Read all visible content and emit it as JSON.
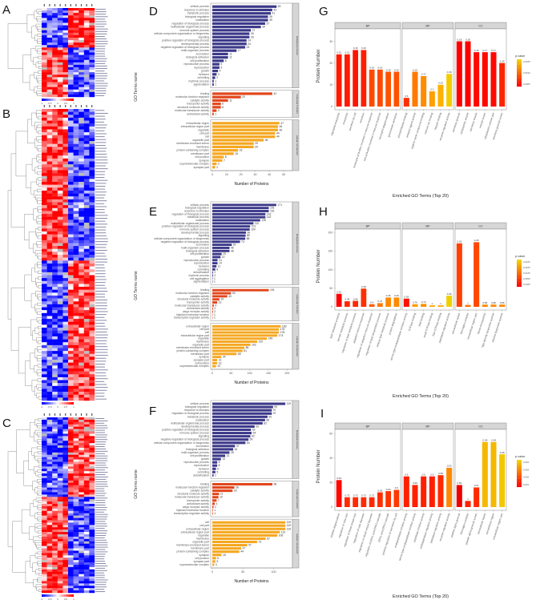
{
  "panel_letters": [
    "A",
    "B",
    "C",
    "D",
    "E",
    "F",
    "G",
    "H",
    "I"
  ],
  "heatmaps": [
    {
      "panel": "A",
      "colorbar_ticks": [
        "-1",
        "-0.5",
        "0",
        "0.5",
        "1"
      ]
    },
    {
      "panel": "B",
      "colorbar_ticks": [
        "-1",
        "-0.5",
        "0",
        "0.5",
        "1"
      ]
    },
    {
      "panel": "C",
      "colorbar_ticks": [
        "-1",
        "-0.5",
        "0",
        "0.5",
        "1"
      ]
    }
  ],
  "colors": {
    "BP": "#3d3a8a",
    "MF": "#e2471c",
    "CC": "#f5a822",
    "low_p": "#ff0000",
    "high_p": "#f2d200",
    "heat_low": "#0000ff",
    "heat_mid": "#ffffff",
    "heat_high": "#ff0000",
    "na": "#bdbdbd",
    "strip": "#d6d6d6"
  },
  "chart_data": [
    {
      "panel": "D",
      "type": "bar",
      "orientation": "horizontal",
      "ylabel": "GO Terms name",
      "xlabel": "Number of Proteins",
      "xlim": [
        0,
        55
      ],
      "xticks": [
        0,
        10,
        20,
        30,
        40,
        50
      ],
      "groups": [
        {
          "name": "biological process",
          "color": "#3d3a8a",
          "terms": [
            "cellular process",
            "response to stimulus",
            "metabolic process",
            "biological regulation",
            "localization",
            "regulation of biological process",
            "multicellular organismal process",
            "immune system process",
            "cellular component organization or biogenesis",
            "signaling",
            "positive regulation of biological process",
            "developmental process",
            "negative regulation of biological process",
            "multi-organism process",
            "locomotion",
            "biological adhesion",
            "cell proliferation",
            "reproductive process",
            "reproduction",
            "growth",
            "behavior",
            "cell killing",
            "rhythmic process",
            "pigmentation"
          ],
          "values": [
            45,
            42,
            41,
            39,
            39,
            37,
            34,
            27,
            26,
            26,
            24,
            24,
            23,
            17,
            11,
            11,
            8,
            5,
            5,
            4,
            3,
            2,
            1,
            1
          ]
        },
        {
          "name": "molecular function",
          "color": "#e2471c",
          "terms": [
            "binding",
            "molecular function regulator",
            "catalytic activity",
            "transporter activity",
            "structural molecule activity",
            "molecular transducer activity",
            "antioxidant activity"
          ],
          "values": [
            42,
            20,
            11,
            6,
            6,
            3,
            1
          ]
        },
        {
          "name": "cellular component",
          "color": "#f5a822",
          "terms": [
            "extracellular region",
            "extracellular region part",
            "organelle",
            "cell part",
            "cell",
            "organelle part",
            "membrane-enclosed lumen",
            "membrane",
            "protein-containing complex",
            "membrane part",
            "cell junction",
            "synapse",
            "supramolecular complex",
            "synapse part"
          ],
          "values": [
            47,
            46,
            46,
            44,
            44,
            36,
            29,
            29,
            18,
            15,
            8,
            7,
            3,
            2
          ]
        }
      ]
    },
    {
      "panel": "E",
      "type": "bar",
      "orientation": "horizontal",
      "ylabel": "GO Terms name",
      "xlabel": "Number of Proteins",
      "xlim": [
        0,
        210
      ],
      "xticks": [
        0,
        50,
        100,
        150,
        200
      ],
      "groups": [
        {
          "name": "biological process",
          "color": "#3d3a8a",
          "terms": [
            "cellular process",
            "biological regulation",
            "response to stimulus",
            "regulation of biological process",
            "metabolic process",
            "localization",
            "multicellular organismal process",
            "positive regulation of biological process",
            "immune system process",
            "developmental process",
            "signaling",
            "cellular component organization or biogenesis",
            "negative regulation of biological process",
            "locomotion",
            "multi-organism process",
            "biological adhesion",
            "cell proliferation",
            "growth",
            "reproductive process",
            "reproduction",
            "behavior",
            "cell killing",
            "detoxification",
            "rhythmic process",
            "cell aggregation",
            "pigmentation"
          ],
          "values": [
            171,
            151,
            151,
            142,
            142,
            128,
            110,
            101,
            100,
            90,
            89,
            88,
            74,
            52,
            46,
            46,
            25,
            22,
            14,
            14,
            11,
            8,
            2,
            2,
            1,
            1
          ]
        },
        {
          "name": "molecular function",
          "color": "#e2471c",
          "terms": [
            "binding",
            "molecular function regulator",
            "catalytic activity",
            "structural molecule activity",
            "transporter activity",
            "molecular transducer activity",
            "antioxidant activity",
            "cargo receptor activity",
            "hijacked molecular function",
            "transcription regulator activity"
          ],
          "values": [
            151,
            50,
            40,
            19,
            13,
            4,
            2,
            2,
            1,
            1
          ]
        },
        {
          "name": "cellular component",
          "color": "#f5a822",
          "terms": [
            "extracellular region",
            "cell part",
            "cell",
            "extracellular region part",
            "organelle",
            "membrane",
            "organelle part",
            "membrane-enclosed lumen",
            "protein-containing complex",
            "membrane part",
            "synapse",
            "synapse part",
            "cell junction",
            "supramolecular complex"
          ],
          "values": [
            183,
            178,
            178,
            174,
            146,
            120,
            102,
            86,
            81,
            65,
            24,
            13,
            13,
            10
          ]
        }
      ]
    },
    {
      "panel": "F",
      "type": "bar",
      "orientation": "horizontal",
      "ylabel": "GO Terms name",
      "xlabel": "Number of Proteins",
      "xlim": [
        0,
        128
      ],
      "xticks": [
        0,
        50,
        100
      ],
      "groups": [
        {
          "name": "biological process",
          "color": "#3d3a8a",
          "terms": [
            "cellular process",
            "biological regulation",
            "response to stimulus",
            "regulation of biological process",
            "metabolic process",
            "localization",
            "multicellular organismal process",
            "developmental process",
            "positive regulation of biological process",
            "immune system process",
            "signaling",
            "negative regulation of biological process",
            "cellular component organization or biogenesis",
            "locomotion",
            "biological adhesion",
            "multi-organism process",
            "cell proliferation",
            "growth",
            "reproductive process",
            "reproduction",
            "behavior",
            "cell killing",
            "detoxification"
          ],
          "values": [
            119,
            99,
            97,
            97,
            90,
            86,
            82,
            69,
            63,
            64,
            62,
            59,
            54,
            37,
            34,
            28,
            21,
            14,
            8,
            8,
            6,
            5,
            2
          ]
        },
        {
          "name": "molecular function",
          "color": "#e2471c",
          "terms": [
            "binding",
            "molecular function regulator",
            "catalytic activity",
            "structural molecule activity",
            "molecular transducer activity",
            "transporter activity",
            "antioxidant activity",
            "cargo receptor activity",
            "hijacked molecular function",
            "transcription regulator activity"
          ],
          "values": [
            98,
            36,
            33,
            11,
            10,
            7,
            4,
            2,
            1,
            1
          ]
        },
        {
          "name": "cellular component",
          "color": "#f5a822",
          "terms": [
            "cell",
            "cell part",
            "extracellular region",
            "extracellular region part",
            "organelle",
            "membrane",
            "organelle part",
            "membrane-enclosed lumen",
            "membrane part",
            "protein-containing complex",
            "synapse",
            "cell junction",
            "synapse part",
            "supramolecular complex"
          ],
          "values": [
            119,
            119,
            119,
            110,
            106,
            87,
            73,
            57,
            47,
            44,
            15,
            6,
            5,
            3
          ]
        }
      ]
    },
    {
      "panel": "G",
      "type": "bar",
      "orientation": "vertical",
      "ylabel": "Protein Number",
      "xlabel": "Enriched GO Terms (Top 20)",
      "ylim": [
        0,
        35
      ],
      "yticks": [
        0,
        10,
        20,
        30
      ],
      "legend": {
        "title": "p.value",
        "ticks": [
          "0.0015",
          "0.0010",
          "0.0005"
        ],
        "position": "right"
      },
      "facets": [
        {
          "name": "BP",
          "terms": [
            "regulated exocytosis",
            "exocytosis",
            "secretion by cell",
            "secretion",
            "leukocyte activation involved in immune response",
            "cell activation involved in immune response",
            "neutrophil degranulation",
            "granulocyte activation"
          ],
          "values": [
            24,
            24,
            26,
            26,
            17,
            17,
            16,
            16
          ],
          "labels": [
            "0.15",
            "0.15",
            "0.16",
            "0.16",
            "0.16",
            "0.16",
            "0.15",
            "0.15"
          ],
          "colors": [
            "#ff1a00",
            "#ff1a00",
            "#ff1400",
            "#ff1f00",
            "#ff4a00",
            "#ff4a00",
            "#ff5200",
            "#ff5200"
          ]
        },
        {
          "name": "MF",
          "terms": [
            "phospholipase binding",
            "receptor ligand activity",
            "organic cyclic compound binding",
            "calcium ion binding",
            "heparin binding",
            "enzyme regulator activity"
          ],
          "values": [
            4,
            16,
            14,
            7,
            10,
            15
          ],
          "labels": [
            "0.6",
            "0.16",
            "0.17",
            "0.2",
            "0.23",
            "0.16"
          ],
          "colors": [
            "#ff3000",
            "#ff7a00",
            "#ff8c00",
            "#ffa000",
            "#ffb000",
            "#f2cc00"
          ]
        },
        {
          "name": "CC",
          "terms": [
            "secretory granule",
            "cytoplasmic vesicle",
            "secretory vesicle",
            "vesicle lumen",
            "cytoplasmic vesicle part",
            "secretory granule lumen"
          ],
          "values": [
            30,
            30,
            25,
            25,
            25,
            20
          ],
          "labels": [
            "0.18",
            "0.18",
            "0.16",
            "0.17",
            "0.17",
            "0.15"
          ],
          "colors": [
            "#ff0000",
            "#ff0000",
            "#ff0800",
            "#ff0800",
            "#ff0800",
            "#ff2400"
          ]
        }
      ]
    },
    {
      "panel": "H",
      "type": "bar",
      "orientation": "vertical",
      "ylabel": "Protein Number",
      "xlabel": "Enriched GO Terms (Top 20)",
      "ylim": [
        0,
        205
      ],
      "yticks": [
        0,
        50,
        100,
        150,
        200
      ],
      "legend": {
        "title": "p.value",
        "ticks": [
          "0.0105",
          "0.0100",
          "0.0075",
          "0.0050",
          "0.0025"
        ],
        "position": "right"
      },
      "facets": [
        {
          "name": "BP",
          "terms": [
            "lipid metabolic process",
            "steroid metabolic process",
            "regulation of lipid metabolic process",
            "adaptive immune response",
            "regulation of adaptive immune response",
            "regulation of lipid biosynthetic process",
            "cellular lipid metabolic process",
            "protein degradation"
          ],
          "values": [
            35,
            15,
            16,
            49,
            7,
            10,
            25,
            25
          ],
          "labels": [
            "0.51",
            "0.46",
            "0.46",
            "0.48",
            "0.4",
            "0.47",
            "0.46",
            "0.46"
          ],
          "colors": [
            "#ff0000",
            "#ff2a00",
            "#ff2a00",
            "#ff3000",
            "#ff5c00",
            "#ff7a00",
            "#ff8a00",
            "#ff8a00"
          ]
        },
        {
          "name": "MF",
          "terms": [
            "serine-type endopeptidase inhibitor activity",
            "GTPase binding",
            "lipid binding",
            "small GTPase binding",
            "Ras GTPase binding",
            "peptidase regulator activity"
          ],
          "values": [
            22,
            7,
            8,
            4,
            4,
            30
          ],
          "labels": [
            "0.56",
            "0.76",
            "0.73",
            "1",
            "1",
            "0.46"
          ],
          "colors": [
            "#ff1000",
            "#ff9a00",
            "#ff9000",
            "#ffa800",
            "#ffa800",
            "#eed000"
          ]
        },
        {
          "name": "CC",
          "terms": [
            "extracellular space",
            "fibrinogen complex",
            "extracellular region part",
            "blood microparticle",
            "high-density lipoprotein particle",
            "plasma lipoprotein particle"
          ],
          "values": [
            171,
            5,
            174,
            6,
            6,
            6
          ],
          "labels": [
            "0.26",
            "1",
            "0.25",
            "0.86",
            "0.86",
            "0.86"
          ],
          "colors": [
            "#ff4000",
            "#ff7000",
            "#ff4800",
            "#ff8a00",
            "#ff8a00",
            "#ff8a00"
          ]
        }
      ]
    },
    {
      "panel": "I",
      "type": "bar",
      "orientation": "vertical",
      "ylabel": "Protein Number",
      "xlabel": "Enriched GO Terms (Top 20)",
      "ylim": [
        0,
        62
      ],
      "yticks": [
        0,
        20,
        40,
        60
      ],
      "legend": {
        "title": "p.value",
        "ticks": [
          "0.004",
          "0.003",
          "0.002",
          "0.001"
        ],
        "position": "right"
      },
      "facets": [
        {
          "name": "BP",
          "terms": [
            "platelet degranulation",
            "regulation of tube size",
            "regulation of blood vessel size",
            "regulation of tube diameter",
            "regulation of blood vessel diameter",
            "regulation of ERK1 and ERK2 cascade",
            "ERK1 and ERK2 cascade",
            "positive regulation of secretion by cell"
          ],
          "values": [
            22,
            8,
            8,
            8,
            8,
            12,
            13,
            14
          ],
          "labels": [
            "0.63",
            "0.73",
            "0.73",
            "0.73",
            "0.73",
            "0.63",
            "0.62",
            "0.6"
          ],
          "colors": [
            "#ff0800",
            "#ff2a00",
            "#ff2a00",
            "#ff2a00",
            "#ff2a00",
            "#ff3000",
            "#ff3400",
            "#ff3800"
          ]
        },
        {
          "name": "MF",
          "terms": [
            "endopeptidase inhibitor activity",
            "serine-type endopeptidase inhibitor activity",
            "peptidase inhibitor activity",
            "endopeptidase regulator activity",
            "peptidase regulator activity",
            "enzyme regulator activity"
          ],
          "values": [
            25,
            18,
            25,
            25,
            26,
            32
          ],
          "labels": [
            "0.6",
            "0.66",
            "0.6",
            "0.6",
            "0.58",
            "0.53"
          ],
          "colors": [
            "#ff2000",
            "#ff2000",
            "#ff2000",
            "#ff2000",
            "#ff2a00",
            "#ff8800"
          ]
        },
        {
          "name": "CC",
          "terms": [
            "platelet alpha granule",
            "fibrinogen complex",
            "platelet alpha granule lumen",
            "extracellular space",
            "extracellular region",
            "extracellular region part"
          ],
          "values": [
            18,
            5,
            16,
            53,
            53,
            43
          ],
          "labels": [
            "0.65",
            "1",
            "0.67",
            "0.28",
            "0.28",
            "0.28"
          ],
          "colors": [
            "#ee0000",
            "#ff2000",
            "#ff2a00",
            "#f5b800",
            "#f5b800",
            "#f2c800"
          ]
        }
      ]
    }
  ]
}
